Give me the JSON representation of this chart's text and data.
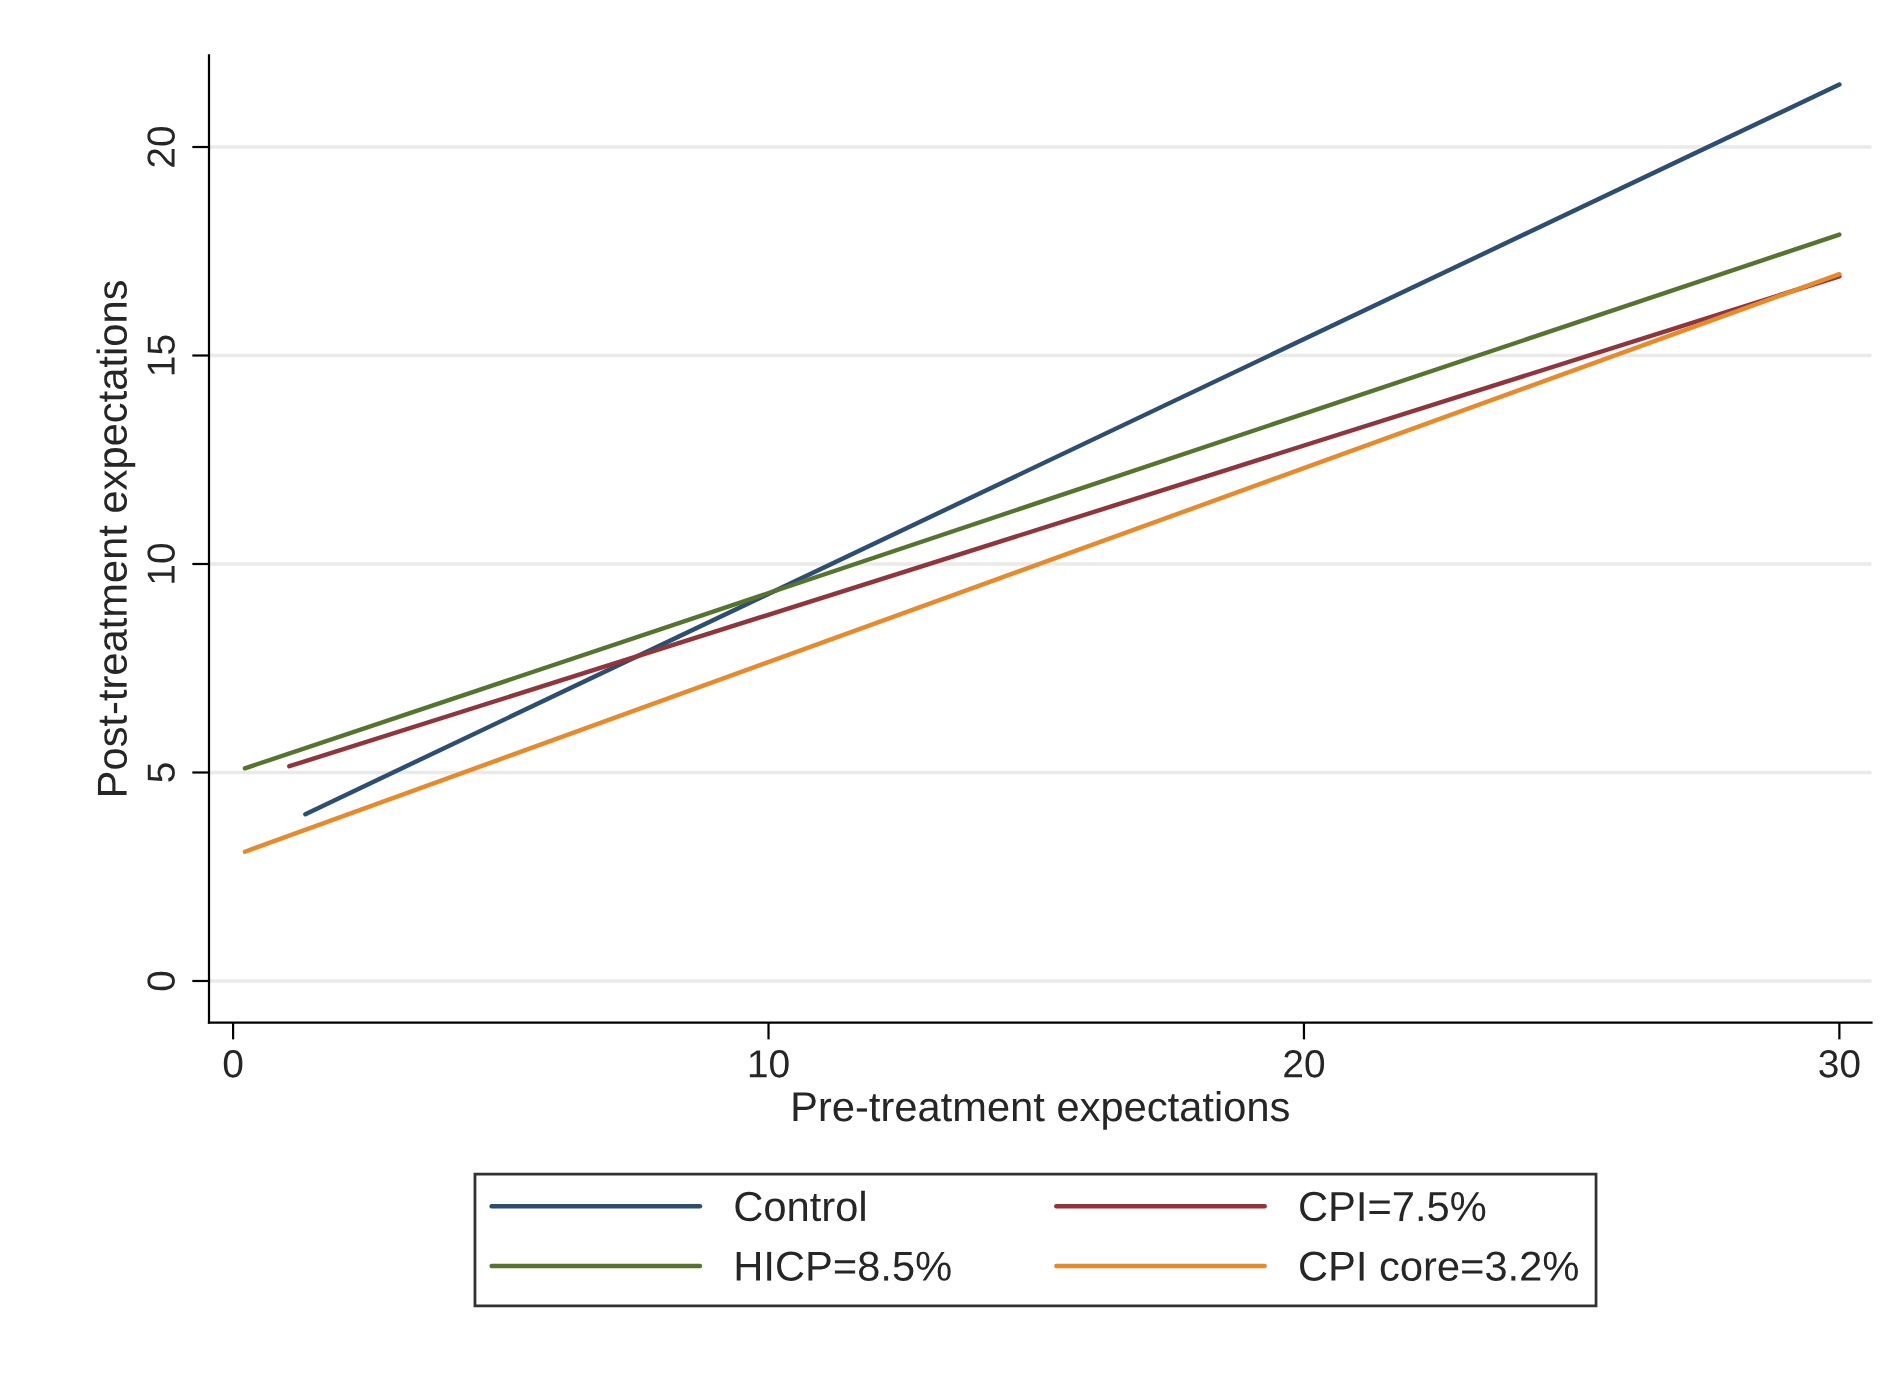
{
  "chart_data": {
    "type": "line",
    "xlabel": "Pre-treatment expectations",
    "ylabel": "Post-treatment expectations",
    "series": [
      {
        "name": "Control",
        "color": "#2d4e73",
        "x": [
          1.35,
          30
        ],
        "values": [
          4.0,
          21.5
        ]
      },
      {
        "name": "CPI=7.5%",
        "color": "#90353b",
        "x": [
          1.05,
          30
        ],
        "values": [
          5.15,
          16.9
        ]
      },
      {
        "name": "HICP=8.5%",
        "color": "#55752f",
        "x": [
          0.22,
          30
        ],
        "values": [
          5.1,
          17.9
        ]
      },
      {
        "name": "CPI core=3.2%",
        "color": "#e8892a",
        "x": [
          0.22,
          30
        ],
        "values": [
          3.1,
          16.95
        ]
      }
    ],
    "xlim": [
      -0.45,
      30.6
    ],
    "ylim": [
      -1,
      22.2
    ],
    "xticks": [
      0,
      10,
      20,
      30
    ],
    "yticks": [
      0,
      5,
      10,
      15,
      20
    ],
    "grid": "y",
    "legend": "bottom",
    "marker": "none",
    "line_style": "solid"
  }
}
